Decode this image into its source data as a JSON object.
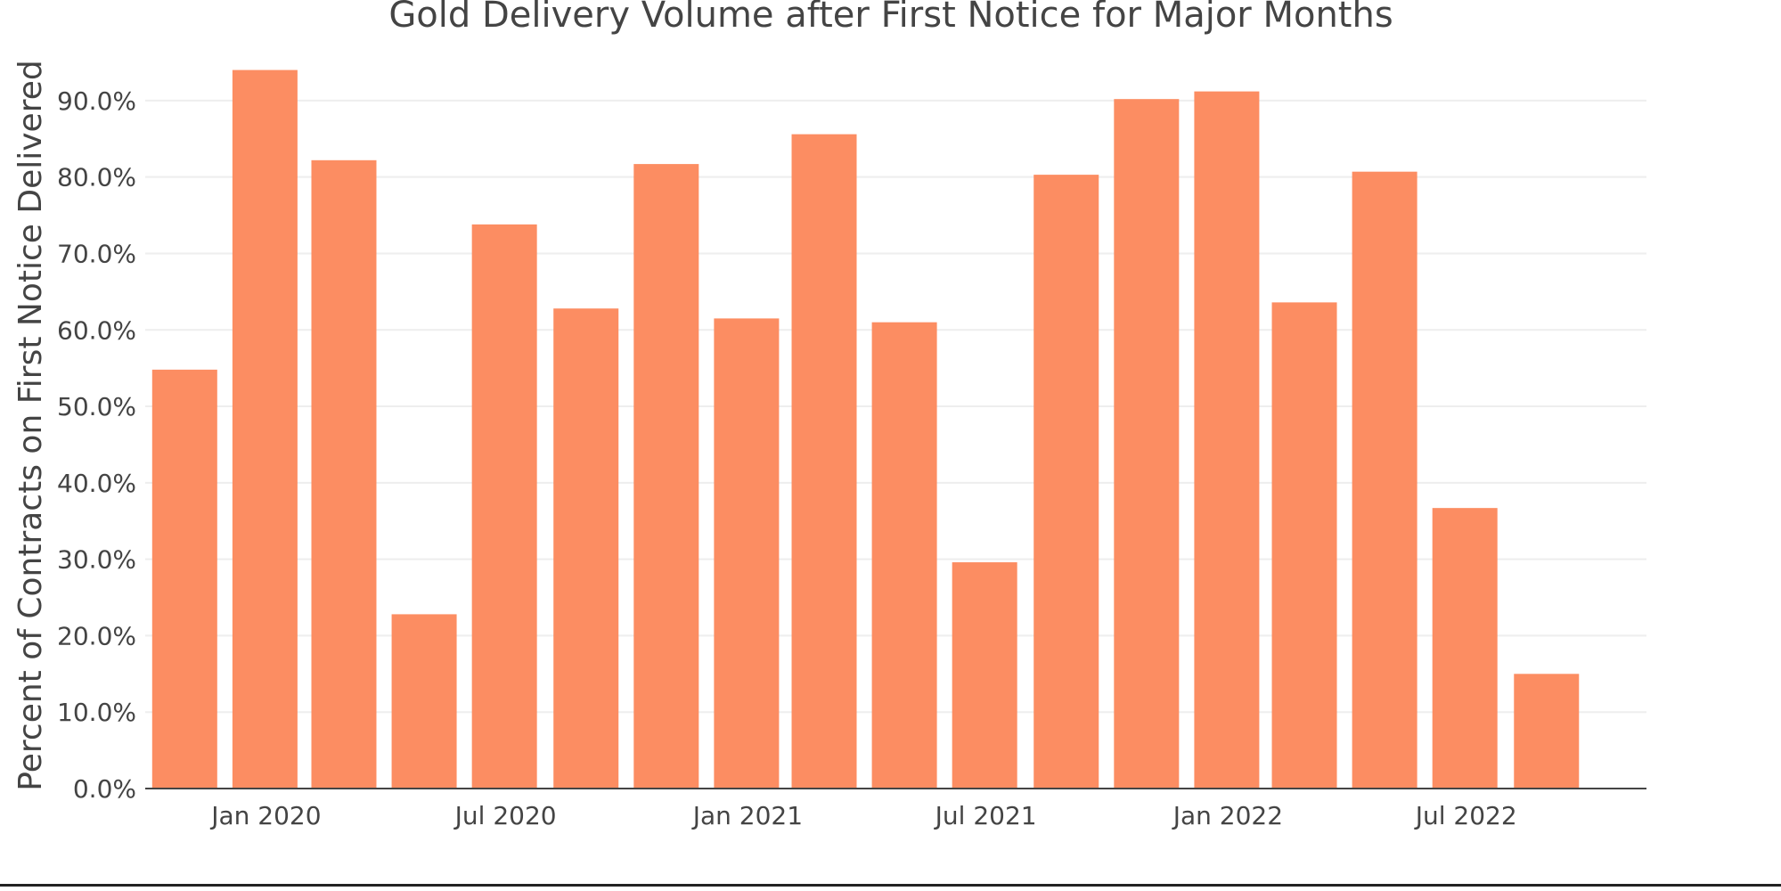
{
  "chart_data": {
    "type": "bar",
    "title": "Gold Delivery Volume after First Notice for Major Months",
    "xlabel": "",
    "ylabel": "Percent of Contracts on First Notice Delivered",
    "x_axis": {
      "type": "date",
      "range": [
        "2019-10-01",
        "2022-11-15"
      ],
      "tick_dates": [
        "2020-01-01",
        "2020-07-01",
        "2021-01-01",
        "2021-07-01",
        "2022-01-01",
        "2022-07-01"
      ],
      "tick_labels": [
        "Jan 2020",
        "Jul 2020",
        "Jan 2021",
        "Jul 2021",
        "Jan 2022",
        "Jul 2022"
      ]
    },
    "ylim": [
      0,
      0.95
    ],
    "y_ticks": [
      0,
      0.1,
      0.2,
      0.3,
      0.4,
      0.5,
      0.6,
      0.7,
      0.8,
      0.9
    ],
    "y_tick_labels": [
      "0.0%",
      "10.0%",
      "20.0%",
      "30.0%",
      "40.0%",
      "50.0%",
      "60.0%",
      "70.0%",
      "80.0%",
      "90.0%"
    ],
    "grid": true,
    "bar_color": "#fc8d62",
    "x": [
      "2019-10-31",
      "2019-12-31",
      "2020-02-29",
      "2020-04-30",
      "2020-06-30",
      "2020-08-31",
      "2020-10-31",
      "2020-12-31",
      "2021-02-28",
      "2021-04-30",
      "2021-06-30",
      "2021-08-31",
      "2021-10-31",
      "2021-12-31",
      "2022-02-28",
      "2022-04-30",
      "2022-06-30",
      "2022-08-31"
    ],
    "values": [
      0.548,
      0.94,
      0.822,
      0.228,
      0.738,
      0.628,
      0.817,
      0.615,
      0.856,
      0.61,
      0.296,
      0.803,
      0.902,
      0.912,
      0.636,
      0.807,
      0.367,
      0.15
    ]
  }
}
